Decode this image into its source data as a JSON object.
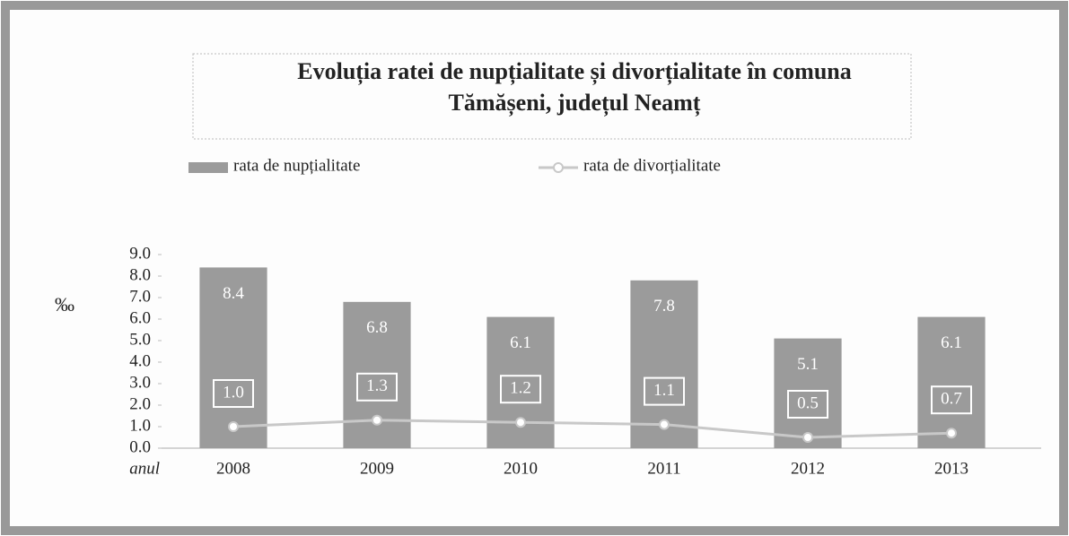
{
  "chart_data": {
    "type": "bar_line",
    "title_lines": [
      "Evoluția ratei de nupțialitate și divorțialitate în comuna",
      "Tămășeni, județul Neamț"
    ],
    "ylabel": "‰",
    "xlabel": "anul",
    "categories": [
      "2008",
      "2009",
      "2010",
      "2011",
      "2012",
      "2013"
    ],
    "series": [
      {
        "name": "rata de nupțialitate",
        "type": "bar",
        "color": "#9b9b9b",
        "values": [
          8.4,
          6.8,
          6.1,
          7.8,
          5.1,
          6.1
        ]
      },
      {
        "name": "rata de divorțialitate",
        "type": "line",
        "color": "#c8c8c8",
        "values": [
          1.0,
          1.3,
          1.2,
          1.1,
          0.5,
          0.7
        ],
        "value_labels": [
          "1.0",
          "1.3",
          "1.2",
          "1.1",
          "0.5",
          "0.7"
        ]
      }
    ],
    "ylim": [
      0,
      9
    ],
    "yticks": [
      {
        "value": 0,
        "label": "0.0"
      },
      {
        "value": 1,
        "label": "1.0"
      },
      {
        "value": 2,
        "label": "2.0"
      },
      {
        "value": 3,
        "label": "3.0"
      },
      {
        "value": 4,
        "label": "4.0"
      },
      {
        "value": 5,
        "label": "5.0"
      },
      {
        "value": 6,
        "label": "6.0"
      },
      {
        "value": 7,
        "label": "7.0"
      },
      {
        "value": 8,
        "label": "8.0"
      },
      {
        "value": 9,
        "label": "9.0"
      }
    ],
    "legend": "top"
  }
}
